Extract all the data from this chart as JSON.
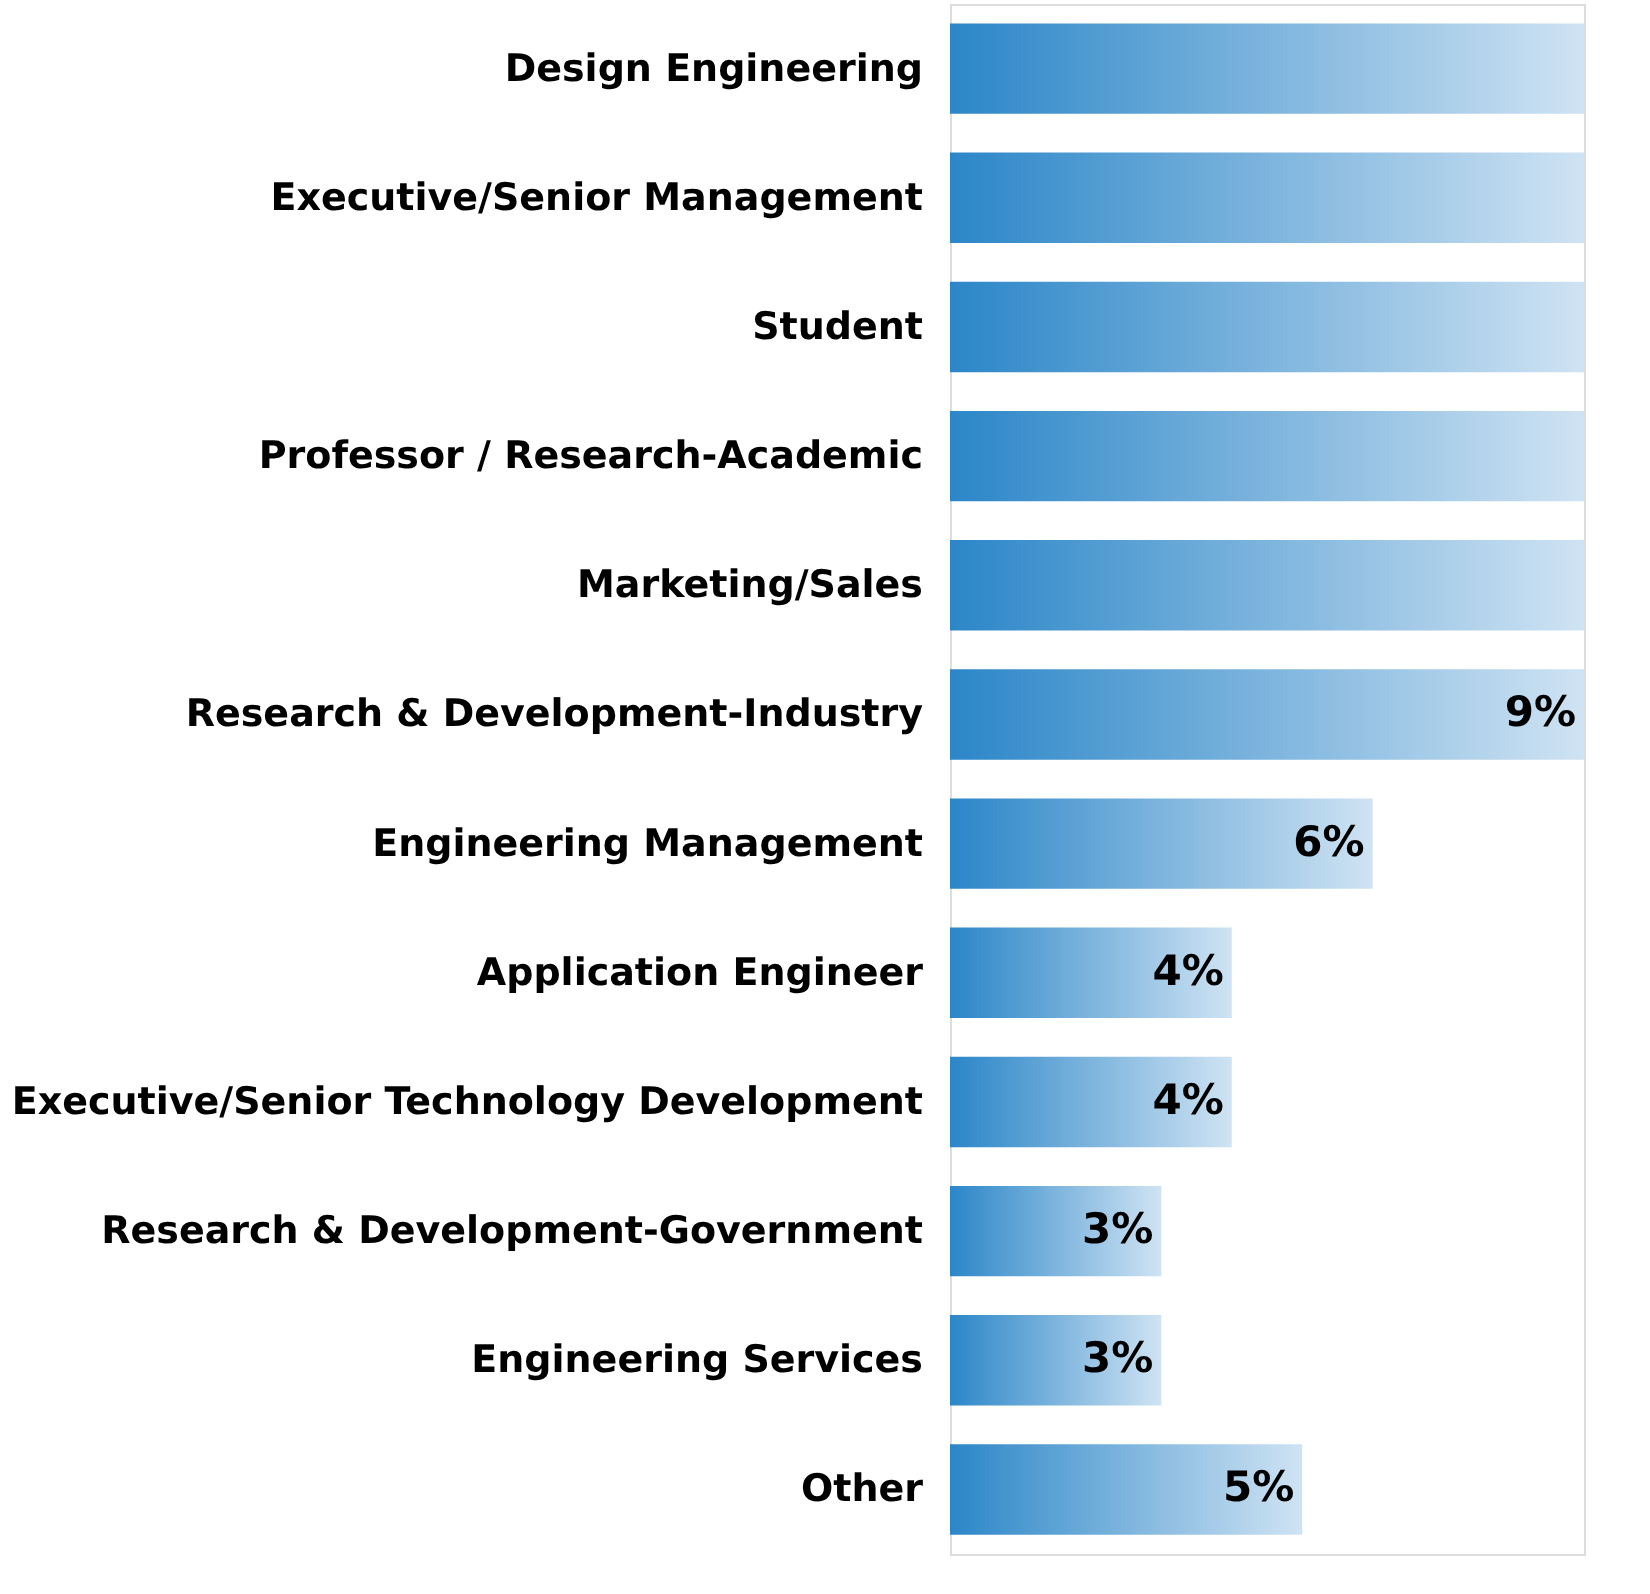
{
  "chart_data": {
    "type": "bar",
    "orientation": "horizontal",
    "categories": [
      "Design Engineering",
      "Executive/Senior Management",
      "Student",
      "Professor / Research-Academic",
      "Marketing/Sales",
      "Research & Development-Industry",
      "Engineering Management",
      "Application Engineer",
      "Executive/Senior Technology Development",
      "Research & Development-Government",
      "Engineering Services",
      "Other"
    ],
    "values": [
      9,
      9,
      9,
      9,
      9,
      9,
      6,
      4,
      4,
      3,
      3,
      5
    ],
    "value_labels": [
      null,
      null,
      null,
      null,
      null,
      "9%",
      "6%",
      "4%",
      "4%",
      "3%",
      "3%",
      "5%"
    ],
    "color": "#2b86c8",
    "xlim": [
      0,
      9
    ],
    "tick_labels": "y",
    "grid": false
  }
}
